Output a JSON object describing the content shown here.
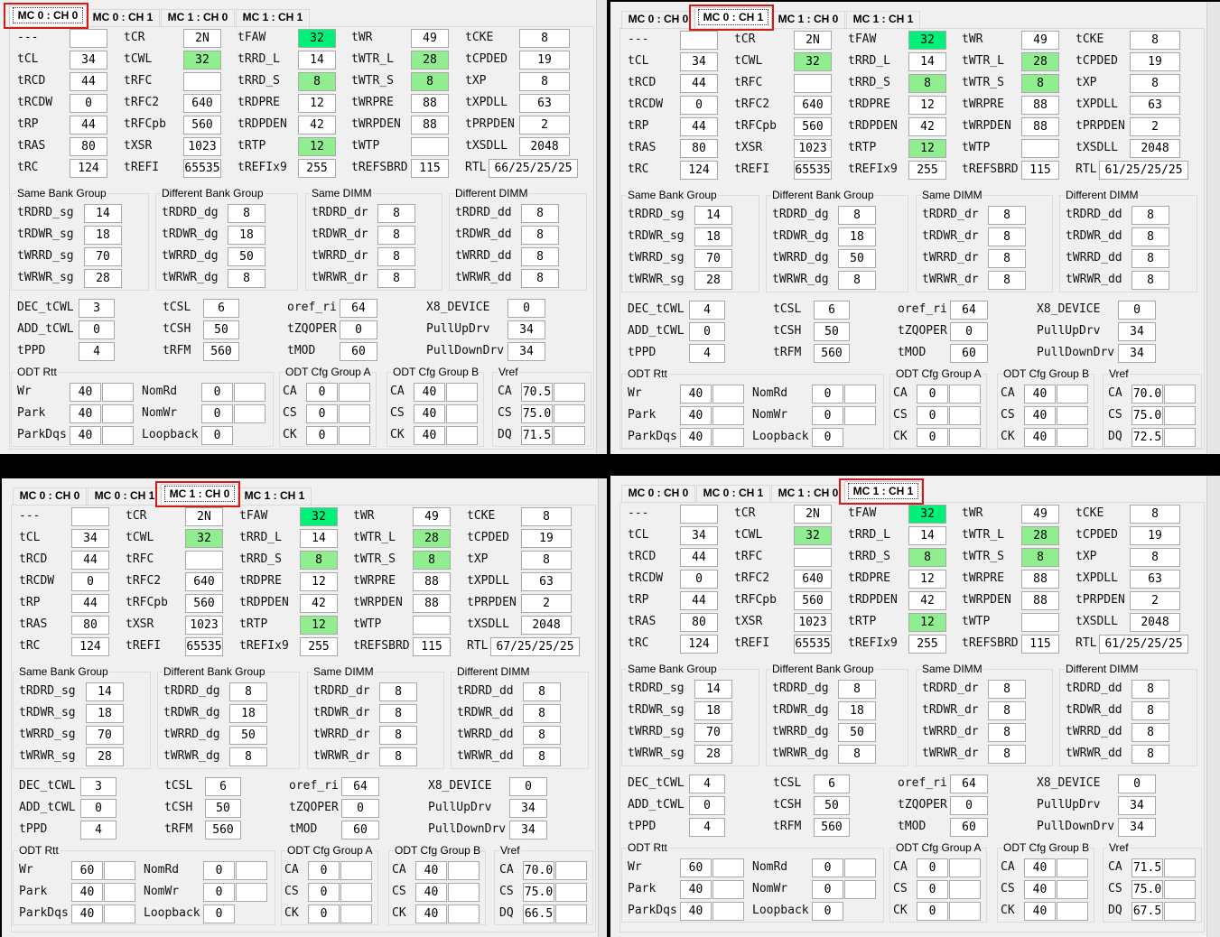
{
  "tabs": [
    "MC 0 : CH 0",
    "MC 0 : CH 1",
    "MC 1 : CH 0",
    "MC 1 : CH 1"
  ],
  "colors": {
    "highlight_strong": "#00f07a",
    "highlight_light": "#90ee90",
    "selection_outline": "#d11a1a"
  },
  "highlighted_cells": {
    "tFAW": "strong",
    "tCWL": "light",
    "tRRD_S": "light",
    "tRTP": "light",
    "tWTR_L": "light",
    "tWTR_S": "light"
  },
  "labels": {
    "main": [
      [
        "---",
        "tCL",
        "tRCD",
        "tRCDW",
        "tRP",
        "tRAS",
        "tRC"
      ],
      [
        "tCR",
        "tCWL",
        "tRFC",
        "tRFC2",
        "tRFCpb",
        "tXSR",
        "tREFI"
      ],
      [
        "tFAW",
        "tRRD_L",
        "tRRD_S",
        "tRDPRE",
        "tRDPDEN",
        "tRTP",
        "tREFIx9"
      ],
      [
        "tWR",
        "tWTR_L",
        "tWTR_S",
        "tWRPRE",
        "tWRPDEN",
        "tWTP",
        "tREFSBRD"
      ],
      [
        "tCKE",
        "tCPDED",
        "tXP",
        "tXPDLL",
        "tPRPDEN",
        "tXSDLL",
        "RTL"
      ]
    ],
    "group_titles": [
      "Same Bank Group",
      "Different Bank Group",
      "Same DIMM",
      "Different DIMM"
    ],
    "groups": [
      [
        "tRDRD_sg",
        "tRDWR_sg",
        "tWRRD_sg",
        "tWRWR_sg"
      ],
      [
        "tRDRD_dg",
        "tRDWR_dg",
        "tWRRD_dg",
        "tWRWR_dg"
      ],
      [
        "tRDRD_dr",
        "tRDWR_dr",
        "tWRRD_dr",
        "tWRWR_dr"
      ],
      [
        "tRDRD_dd",
        "tRDWR_dd",
        "tWRRD_dd",
        "tWRWR_dd"
      ]
    ],
    "misc": [
      [
        "DEC_tCWL",
        "ADD_tCWL",
        "tPPD"
      ],
      [
        "tCSL",
        "tCSH",
        "tRFM"
      ],
      [
        "oref_ri",
        "tZQOPER",
        "tMOD"
      ],
      [
        "X8_DEVICE",
        "PullUpDrv",
        "PullDownDrv"
      ]
    ],
    "odt_rtt_title": "ODT Rtt",
    "odt_rtt": [
      [
        "Wr",
        "Park",
        "ParkDqs"
      ],
      [
        "NomRd",
        "NomWr",
        "Loopback"
      ]
    ],
    "odt_group_a_title": "ODT Cfg Group A",
    "odt_group_b_title": "ODT Cfg Group B",
    "odt_group_labels": [
      "CA",
      "CS",
      "CK"
    ],
    "vref_title": "Vref",
    "vref_labels": [
      "CA",
      "CS",
      "DQ"
    ]
  },
  "panels": [
    {
      "selected_tab": 0,
      "main": [
        [
          "",
          "34",
          "44",
          "0",
          "44",
          "80",
          "124"
        ],
        [
          "2N",
          "32",
          "",
          "640",
          "560",
          "1023",
          "65535"
        ],
        [
          "32",
          "14",
          "8",
          "12",
          "42",
          "12",
          "255"
        ],
        [
          "49",
          "28",
          "8",
          "88",
          "88",
          "",
          "115"
        ],
        [
          "8",
          "19",
          "8",
          "63",
          "2",
          "2048",
          "66/25/25/25"
        ]
      ],
      "groups": [
        [
          "14",
          "18",
          "70",
          "28"
        ],
        [
          "8",
          "18",
          "50",
          "8"
        ],
        [
          "8",
          "8",
          "8",
          "8"
        ],
        [
          "8",
          "8",
          "8",
          "8"
        ]
      ],
      "misc": [
        [
          "3",
          "0",
          "4"
        ],
        [
          "6",
          "50",
          "560"
        ],
        [
          "64",
          "0",
          "60"
        ],
        [
          "0",
          "34",
          "34"
        ]
      ],
      "odt_rtt": [
        [
          "40",
          "40",
          "40"
        ],
        [
          "0",
          "0",
          "0"
        ]
      ],
      "odt_group_a": [
        "0",
        "0",
        "0"
      ],
      "odt_group_b": [
        "40",
        "40",
        "40"
      ],
      "vref": [
        "70.5",
        "75.0",
        "71.5"
      ]
    },
    {
      "selected_tab": 1,
      "main": [
        [
          "",
          "34",
          "44",
          "0",
          "44",
          "80",
          "124"
        ],
        [
          "2N",
          "32",
          "",
          "640",
          "560",
          "1023",
          "65535"
        ],
        [
          "32",
          "14",
          "8",
          "12",
          "42",
          "12",
          "255"
        ],
        [
          "49",
          "28",
          "8",
          "88",
          "88",
          "",
          "115"
        ],
        [
          "8",
          "19",
          "8",
          "63",
          "2",
          "2048",
          "61/25/25/25"
        ]
      ],
      "groups": [
        [
          "14",
          "18",
          "70",
          "28"
        ],
        [
          "8",
          "18",
          "50",
          "8"
        ],
        [
          "8",
          "8",
          "8",
          "8"
        ],
        [
          "8",
          "8",
          "8",
          "8"
        ]
      ],
      "misc": [
        [
          "4",
          "0",
          "4"
        ],
        [
          "6",
          "50",
          "560"
        ],
        [
          "64",
          "0",
          "60"
        ],
        [
          "0",
          "34",
          "34"
        ]
      ],
      "odt_rtt": [
        [
          "40",
          "40",
          "40"
        ],
        [
          "0",
          "0",
          "0"
        ]
      ],
      "odt_group_a": [
        "0",
        "0",
        "0"
      ],
      "odt_group_b": [
        "40",
        "40",
        "40"
      ],
      "vref": [
        "70.0",
        "75.0",
        "72.5"
      ]
    },
    {
      "selected_tab": 2,
      "main": [
        [
          "",
          "34",
          "44",
          "0",
          "44",
          "80",
          "124"
        ],
        [
          "2N",
          "32",
          "",
          "640",
          "560",
          "1023",
          "65535"
        ],
        [
          "32",
          "14",
          "8",
          "12",
          "42",
          "12",
          "255"
        ],
        [
          "49",
          "28",
          "8",
          "88",
          "88",
          "",
          "115"
        ],
        [
          "8",
          "19",
          "8",
          "63",
          "2",
          "2048",
          "67/25/25/25"
        ]
      ],
      "groups": [
        [
          "14",
          "18",
          "70",
          "28"
        ],
        [
          "8",
          "18",
          "50",
          "8"
        ],
        [
          "8",
          "8",
          "8",
          "8"
        ],
        [
          "8",
          "8",
          "8",
          "8"
        ]
      ],
      "misc": [
        [
          "3",
          "0",
          "4"
        ],
        [
          "6",
          "50",
          "560"
        ],
        [
          "64",
          "0",
          "60"
        ],
        [
          "0",
          "34",
          "34"
        ]
      ],
      "odt_rtt": [
        [
          "60",
          "40",
          "40"
        ],
        [
          "0",
          "0",
          "0"
        ]
      ],
      "odt_group_a": [
        "0",
        "0",
        "0"
      ],
      "odt_group_b": [
        "40",
        "40",
        "40"
      ],
      "vref": [
        "70.0",
        "75.0",
        "66.5"
      ]
    },
    {
      "selected_tab": 3,
      "main": [
        [
          "",
          "34",
          "44",
          "0",
          "44",
          "80",
          "124"
        ],
        [
          "2N",
          "32",
          "",
          "640",
          "560",
          "1023",
          "65535"
        ],
        [
          "32",
          "14",
          "8",
          "12",
          "42",
          "12",
          "255"
        ],
        [
          "49",
          "28",
          "8",
          "88",
          "88",
          "",
          "115"
        ],
        [
          "8",
          "19",
          "8",
          "63",
          "2",
          "2048",
          "61/25/25/25"
        ]
      ],
      "groups": [
        [
          "14",
          "18",
          "70",
          "28"
        ],
        [
          "8",
          "18",
          "50",
          "8"
        ],
        [
          "8",
          "8",
          "8",
          "8"
        ],
        [
          "8",
          "8",
          "8",
          "8"
        ]
      ],
      "misc": [
        [
          "4",
          "0",
          "4"
        ],
        [
          "6",
          "50",
          "560"
        ],
        [
          "64",
          "0",
          "60"
        ],
        [
          "0",
          "34",
          "34"
        ]
      ],
      "odt_rtt": [
        [
          "60",
          "40",
          "40"
        ],
        [
          "0",
          "0",
          "0"
        ]
      ],
      "odt_group_a": [
        "0",
        "0",
        "0"
      ],
      "odt_group_b": [
        "40",
        "40",
        "40"
      ],
      "vref": [
        "71.5",
        "75.0",
        "67.5"
      ]
    }
  ]
}
